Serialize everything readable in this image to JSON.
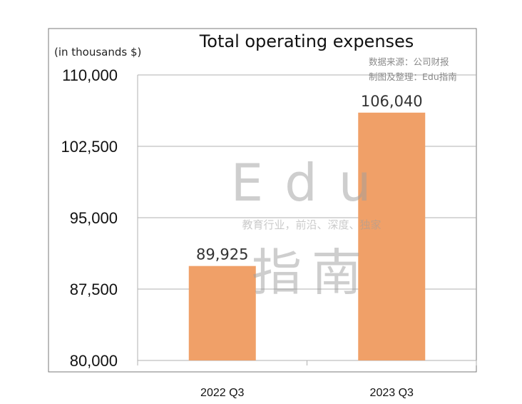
{
  "chart_data": {
    "type": "bar",
    "title": "Total operating expenses",
    "ylabel": "(in thousands $)",
    "categories": [
      "2022 Q3",
      "2023 Q3"
    ],
    "values": [
      89925,
      106040
    ],
    "value_labels": [
      "89,925",
      "106,040"
    ],
    "ylim": [
      80000,
      110000
    ],
    "yticks": [
      80000,
      87500,
      95000,
      102500,
      110000
    ],
    "ytick_labels": [
      "80,000",
      "87,500",
      "95,000",
      "102,500",
      "110,000"
    ],
    "grid": true,
    "bar_color": "#f0a068"
  },
  "source": {
    "line1": "数据来源：公司财报",
    "line2": "制图及整理：Edu指南"
  },
  "watermark": {
    "top": "Edu",
    "slogan": "教育行业，前沿、深度、独家",
    "bottom": "指南"
  }
}
